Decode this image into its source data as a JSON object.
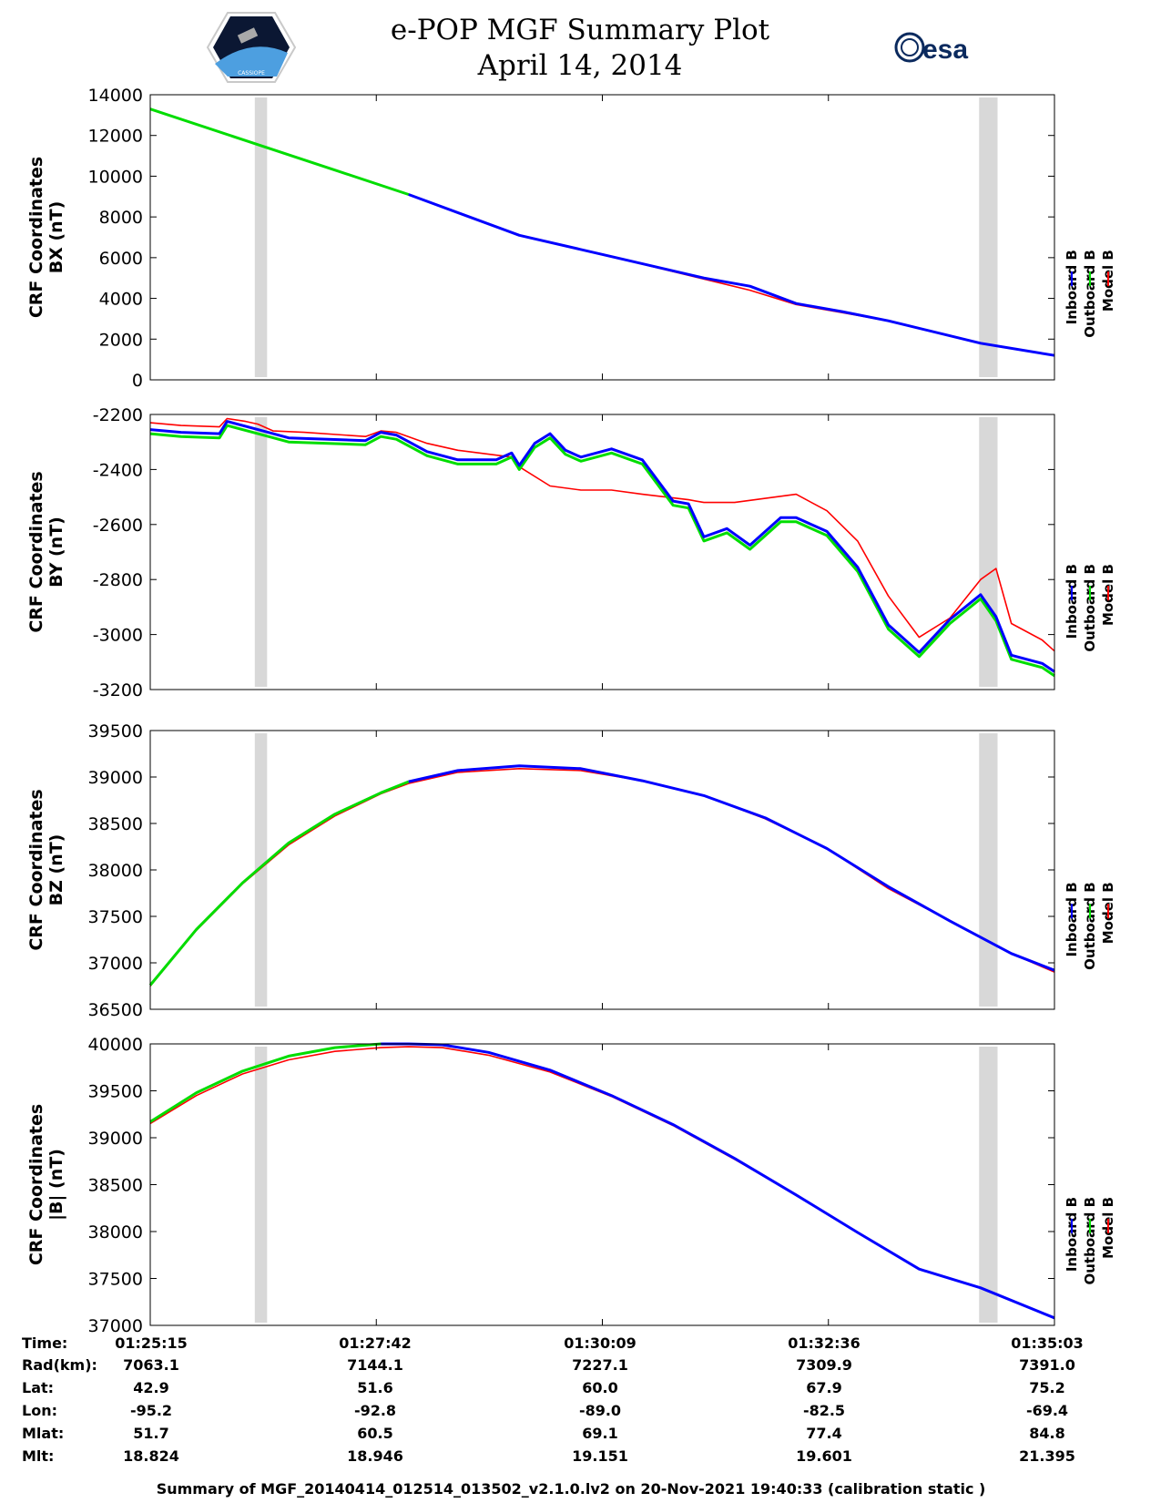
{
  "title": {
    "line1": "e-POP MGF Summary Plot",
    "line2": "April 14, 2014"
  },
  "logos": {
    "left_text": "CASSIOPE",
    "right_text": "esa"
  },
  "colors": {
    "inboard": "#0000ff",
    "outboard": "#00dd00",
    "model": "#ff0000",
    "shade": "#d8d8d8"
  },
  "legend": [
    "Inboard B",
    "Outboard B",
    "Model B"
  ],
  "footer": "Summary of MGF_20140414_012514_013502_v2.1.0.lv2 on 20-Nov-2021 19:40:33 (calibration static )",
  "info_table": {
    "labels": [
      "Time:",
      "Rad(km):",
      "Lat:",
      "Lon:",
      "Mlat:",
      "Mlt:"
    ],
    "columns": [
      [
        "01:25:15",
        "7063.1",
        "42.9",
        "-95.2",
        "51.7",
        "18.824"
      ],
      [
        "01:27:42",
        "7144.1",
        "51.6",
        "-92.8",
        "60.5",
        "18.946"
      ],
      [
        "01:30:09",
        "7227.1",
        "60.0",
        "-89.0",
        "69.1",
        "19.151"
      ],
      [
        "01:32:36",
        "7309.9",
        "67.9",
        "-82.5",
        "77.4",
        "19.601"
      ],
      [
        "01:35:03",
        "7391.0",
        "75.2",
        "-69.4",
        "84.8",
        "21.395"
      ]
    ]
  },
  "chart_data": [
    {
      "type": "line",
      "ylabel": [
        "CRF Coordinates",
        "BX (nT)"
      ],
      "xlim": [
        0,
        588
      ],
      "ylim": [
        0,
        14000
      ],
      "yticks": [
        0,
        2000,
        4000,
        6000,
        8000,
        10000,
        12000,
        14000
      ],
      "shaded_x": [
        [
          68,
          76
        ],
        [
          539,
          551
        ]
      ],
      "series": [
        {
          "name": "Model B",
          "x": [
            0,
            60,
            120,
            168,
            240,
            300,
            360,
            390,
            420,
            450,
            480,
            540,
            588
          ],
          "values": [
            13300,
            11800,
            10300,
            9100,
            7100,
            6050,
            4950,
            4400,
            3700,
            3300,
            2900,
            1800,
            1200
          ]
        },
        {
          "name": "Outboard B",
          "x": [
            0,
            60,
            120,
            168
          ],
          "values": [
            13300,
            11800,
            10300,
            9100
          ]
        },
        {
          "name": "Inboard B",
          "x": [
            168,
            240,
            300,
            360,
            390,
            420,
            450,
            480,
            540,
            588
          ],
          "values": [
            9100,
            7100,
            6050,
            5000,
            4600,
            3750,
            3350,
            2900,
            1800,
            1200
          ]
        }
      ]
    },
    {
      "type": "line",
      "ylabel": [
        "CRF Coordinates",
        "BY (nT)"
      ],
      "xlim": [
        0,
        588
      ],
      "ylim": [
        -3200,
        -2200
      ],
      "yticks": [
        -3200,
        -3000,
        -2800,
        -2600,
        -2400,
        -2200
      ],
      "shaded_x": [
        [
          68,
          76
        ],
        [
          539,
          551
        ]
      ],
      "series": [
        {
          "name": "Model B",
          "x": [
            0,
            20,
            45,
            50,
            62,
            70,
            80,
            100,
            140,
            150,
            160,
            180,
            200,
            235,
            240,
            260,
            280,
            300,
            320,
            350,
            360,
            380,
            400,
            420,
            440,
            460,
            480,
            500,
            520,
            540,
            550,
            560,
            580,
            588
          ],
          "values": [
            -2230,
            -2240,
            -2245,
            -2215,
            -2225,
            -2235,
            -2260,
            -2265,
            -2280,
            -2260,
            -2265,
            -2305,
            -2330,
            -2355,
            -2390,
            -2460,
            -2475,
            -2475,
            -2490,
            -2510,
            -2520,
            -2520,
            -2505,
            -2490,
            -2550,
            -2660,
            -2860,
            -3010,
            -2940,
            -2800,
            -2760,
            -2960,
            -3020,
            -3060
          ]
        },
        {
          "name": "Outboard B",
          "x": [
            0,
            20,
            45,
            50,
            70,
            90,
            140,
            150,
            160,
            180,
            200,
            225,
            235,
            240,
            250,
            260,
            270,
            280,
            300,
            320,
            340,
            350,
            360,
            375,
            390,
            400,
            410,
            420,
            440,
            460,
            480,
            500,
            520,
            540,
            550,
            560,
            580,
            588
          ],
          "values": [
            -2270,
            -2280,
            -2285,
            -2240,
            -2270,
            -2300,
            -2310,
            -2280,
            -2290,
            -2350,
            -2380,
            -2380,
            -2355,
            -2400,
            -2320,
            -2285,
            -2345,
            -2370,
            -2340,
            -2380,
            -2530,
            -2540,
            -2660,
            -2630,
            -2690,
            -2640,
            -2590,
            -2590,
            -2640,
            -2770,
            -2980,
            -3080,
            -2960,
            -2870,
            -2950,
            -3090,
            -3120,
            -3150
          ]
        },
        {
          "name": "Inboard B",
          "x": [
            0,
            20,
            45,
            50,
            70,
            90,
            140,
            150,
            160,
            180,
            200,
            225,
            235,
            240,
            250,
            260,
            270,
            280,
            300,
            320,
            340,
            350,
            360,
            375,
            390,
            400,
            410,
            420,
            440,
            460,
            480,
            500,
            520,
            540,
            550,
            560,
            580,
            588
          ],
          "values": [
            -2255,
            -2265,
            -2270,
            -2225,
            -2255,
            -2285,
            -2295,
            -2265,
            -2275,
            -2335,
            -2365,
            -2365,
            -2340,
            -2385,
            -2305,
            -2270,
            -2330,
            -2355,
            -2325,
            -2365,
            -2515,
            -2525,
            -2645,
            -2615,
            -2675,
            -2625,
            -2575,
            -2575,
            -2625,
            -2755,
            -2965,
            -3065,
            -2945,
            -2855,
            -2935,
            -3075,
            -3105,
            -3135
          ]
        }
      ]
    },
    {
      "type": "line",
      "ylabel": [
        "CRF Coordinates",
        "BZ (nT)"
      ],
      "xlim": [
        0,
        588
      ],
      "ylim": [
        36500,
        39500
      ],
      "yticks": [
        36500,
        37000,
        37500,
        38000,
        38500,
        39000,
        39500
      ],
      "shaded_x": [
        [
          68,
          76
        ],
        [
          539,
          551
        ]
      ],
      "series": [
        {
          "name": "Model B",
          "x": [
            0,
            30,
            60,
            90,
            120,
            150,
            168,
            200,
            240,
            280,
            320,
            360,
            400,
            440,
            480,
            520,
            560,
            588
          ],
          "values": [
            36750,
            37350,
            37850,
            38270,
            38580,
            38820,
            38930,
            39050,
            39090,
            39070,
            38960,
            38800,
            38550,
            38230,
            37800,
            37450,
            37100,
            36900
          ]
        },
        {
          "name": "Outboard B",
          "x": [
            0,
            30,
            60,
            90,
            120,
            150,
            168
          ],
          "values": [
            36760,
            37360,
            37860,
            38290,
            38600,
            38830,
            38950
          ]
        },
        {
          "name": "Inboard B",
          "x": [
            168,
            200,
            240,
            280,
            320,
            360,
            400,
            440,
            480,
            520,
            560,
            588
          ],
          "values": [
            38950,
            39070,
            39120,
            39090,
            38960,
            38800,
            38560,
            38230,
            37820,
            37450,
            37100,
            36920
          ]
        }
      ]
    },
    {
      "type": "line",
      "ylabel": [
        "CRF Coordinates",
        "|B| (nT)"
      ],
      "xlim": [
        0,
        588
      ],
      "ylim": [
        37000,
        40000
      ],
      "yticks": [
        37000,
        37500,
        38000,
        38500,
        39000,
        39500,
        40000
      ],
      "shaded_x": [
        [
          68,
          76
        ],
        [
          539,
          551
        ]
      ],
      "series": [
        {
          "name": "Model B",
          "x": [
            0,
            30,
            60,
            90,
            120,
            150,
            168,
            190,
            220,
            260,
            300,
            340,
            380,
            420,
            460,
            500,
            540,
            588
          ],
          "values": [
            39150,
            39450,
            39680,
            39830,
            39920,
            39960,
            39970,
            39960,
            39880,
            39700,
            39440,
            39130,
            38770,
            38390,
            37990,
            37600,
            37400,
            37080
          ]
        },
        {
          "name": "Outboard B",
          "x": [
            0,
            30,
            60,
            90,
            120,
            150,
            168
          ],
          "values": [
            39170,
            39480,
            39710,
            39870,
            39960,
            40000,
            40000
          ]
        },
        {
          "name": "Inboard B",
          "x": [
            150,
            168,
            190,
            220,
            260,
            300,
            340,
            380,
            420,
            460,
            500,
            540,
            588
          ],
          "values": [
            40000,
            40000,
            39990,
            39910,
            39720,
            39450,
            39140,
            38780,
            38390,
            37990,
            37600,
            37400,
            37080
          ]
        }
      ]
    }
  ]
}
